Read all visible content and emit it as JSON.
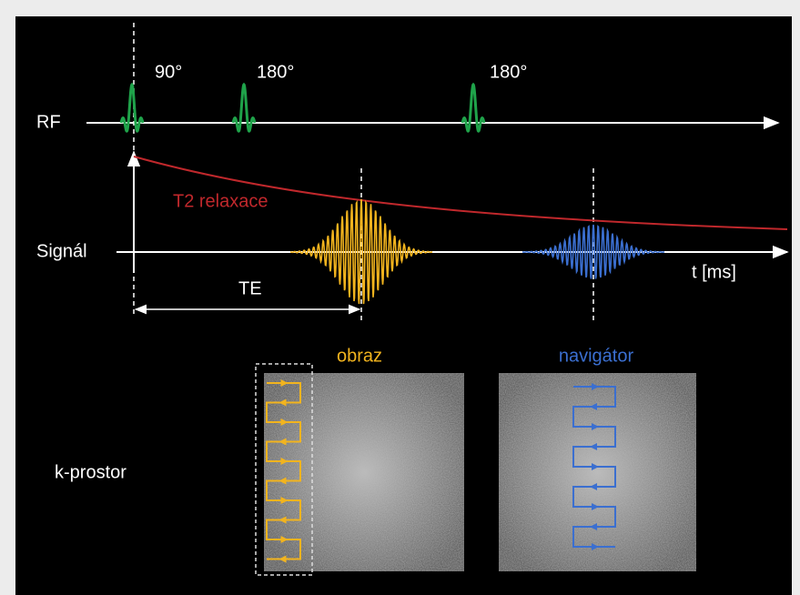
{
  "rf": {
    "label": "RF",
    "pulses": [
      "90°",
      "180°",
      "180°"
    ]
  },
  "signal": {
    "label": "Signál",
    "axis": "t [ms]",
    "relaxation": "T2 relaxace",
    "echo_time": "TE"
  },
  "k_space": {
    "label": "k-prostor",
    "images": [
      "obraz",
      "navigátor"
    ]
  }
}
